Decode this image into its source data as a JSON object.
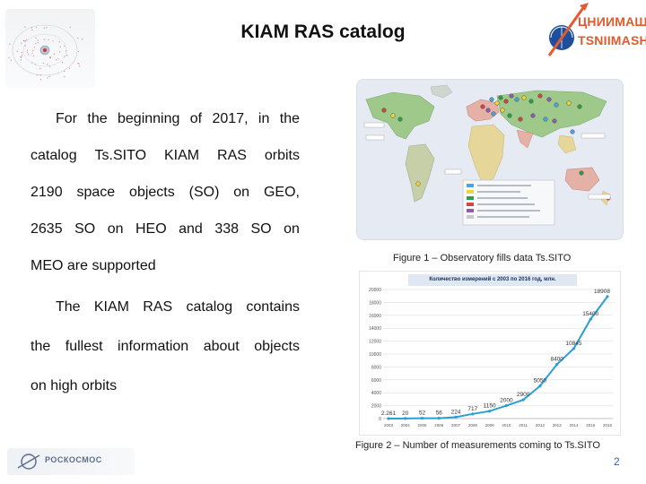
{
  "header": {
    "title": "KIAM RAS catalog",
    "logo_text_ru": "ЦНИИМАШ",
    "logo_text_en": "TSNIIMASH"
  },
  "paragraph1": {
    "lines": [
      [
        "For",
        "the",
        "beginning",
        "of",
        "2017,",
        "in",
        "the"
      ],
      [
        "catalog",
        "Ts.SITO",
        "KIAM",
        "RAS",
        "orbits"
      ],
      [
        "2190",
        "space",
        "objects",
        "(SO)",
        "on",
        "GEO,"
      ],
      [
        "2635",
        "SO",
        "on",
        "HEO",
        "and",
        "338",
        "SO",
        "on"
      ],
      [
        "MEO are supported"
      ]
    ]
  },
  "paragraph2": {
    "lines": [
      [
        "The",
        "KIAM",
        "RAS",
        "catalog",
        "contains"
      ],
      [
        "the",
        "fullest",
        "information",
        "about",
        "objects"
      ],
      [
        "on high orbits"
      ]
    ]
  },
  "figure1": {
    "caption": "Figure 1 – Observatory fills data Ts.SITO"
  },
  "figure2": {
    "caption": "Figure 2 – Number of measurements coming to Ts.SITO"
  },
  "chart_data": {
    "type": "line",
    "title": "Количество измерений с 2003 по 2016 год, млн.",
    "x": [
      "2003",
      "2004",
      "2005",
      "2006",
      "2007",
      "2008",
      "2009",
      "2010",
      "2011",
      "2012",
      "2013",
      "2014",
      "2015",
      "2016"
    ],
    "series": [
      {
        "values": [
          2.261,
          20,
          52,
          56,
          224,
          717,
          1150,
          2000,
          2900,
          5050,
          8400,
          10845,
          15400,
          18908
        ],
        "labels": [
          "2.261",
          "20",
          "52",
          "56",
          "224",
          "717",
          "1150",
          "2000",
          "2900",
          "5050",
          "8400",
          "10845",
          "15400",
          "18908"
        ]
      }
    ],
    "yticks": [
      0,
      2000,
      4000,
      6000,
      8000,
      10000,
      12000,
      14000,
      16000,
      18000,
      20000
    ],
    "ylim": [
      0,
      20000
    ],
    "grid": "horizontal",
    "line_color": "#2a9fd6"
  },
  "footer": {
    "logo_text": "РОСКОСМОС",
    "page_number": "2"
  }
}
